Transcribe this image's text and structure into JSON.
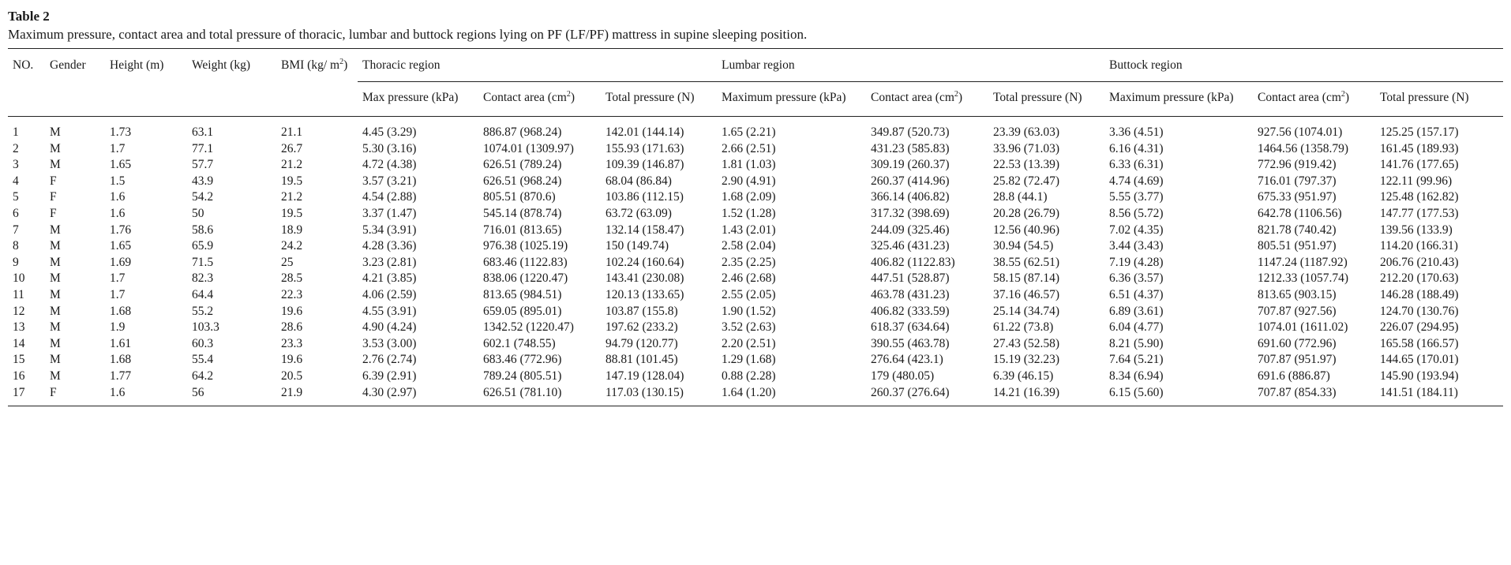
{
  "table": {
    "title": "Table 2",
    "caption": "Maximum pressure, contact area and total pressure of thoracic, lumbar and buttock regions lying on PF (LF/PF) mattress in supine sleeping position.",
    "header": {
      "no": "NO.",
      "gender": "Gender",
      "height": "Height (m)",
      "weight": "Weight (kg)",
      "bmi_prefix": "BMI (kg/ m",
      "bmi_sup": "2",
      "bmi_suffix": ")",
      "groups": {
        "thoracic": "Thoracic region",
        "lumbar": "Lumbar region",
        "buttock": "Buttock region"
      },
      "sub": {
        "thoracic_max": "Max pressure (kPa)",
        "thoracic_area_prefix": "Contact area (cm",
        "thoracic_total": "Total pressure (N)",
        "lumbar_max": "Maximum pressure (kPa)",
        "lumbar_area_prefix": "Contact area (cm",
        "lumbar_total": "Total pressure (N)",
        "buttock_max": "Maximum pressure (kPa)",
        "buttock_area_prefix": "Contact area (cm",
        "buttock_total": "Total pressure (N)",
        "area_sup": "2",
        "area_suffix": ")"
      }
    },
    "rows": [
      [
        "1",
        "M",
        "1.73",
        "63.1",
        "21.1",
        "4.45 (3.29)",
        "886.87 (968.24)",
        "142.01 (144.14)",
        "1.65 (2.21)",
        "349.87 (520.73)",
        "23.39 (63.03)",
        "3.36 (4.51)",
        "927.56 (1074.01)",
        "125.25 (157.17)"
      ],
      [
        "2",
        "M",
        "1.7",
        "77.1",
        "26.7",
        "5.30 (3.16)",
        "1074.01 (1309.97)",
        "155.93 (171.63)",
        "2.66 (2.51)",
        "431.23 (585.83)",
        "33.96 (71.03)",
        "6.16 (4.31)",
        "1464.56 (1358.79)",
        "161.45 (189.93)"
      ],
      [
        "3",
        "M",
        "1.65",
        "57.7",
        "21.2",
        "4.72 (4.38)",
        "626.51 (789.24)",
        "109.39 (146.87)",
        "1.81 (1.03)",
        "309.19 (260.37)",
        "22.53 (13.39)",
        "6.33 (6.31)",
        "772.96 (919.42)",
        "141.76 (177.65)"
      ],
      [
        "4",
        "F",
        "1.5",
        "43.9",
        "19.5",
        "3.57 (3.21)",
        "626.51 (968.24)",
        "68.04 (86.84)",
        "2.90 (4.91)",
        "260.37 (414.96)",
        "25.82 (72.47)",
        "4.74 (4.69)",
        "716.01 (797.37)",
        "122.11 (99.96)"
      ],
      [
        "5",
        "F",
        "1.6",
        "54.2",
        "21.2",
        "4.54 (2.88)",
        "805.51 (870.6)",
        "103.86 (112.15)",
        "1.68 (2.09)",
        "366.14 (406.82)",
        "28.8 (44.1)",
        "5.55 (3.77)",
        "675.33 (951.97)",
        "125.48 (162.82)"
      ],
      [
        "6",
        "F",
        "1.6",
        "50",
        "19.5",
        "3.37 (1.47)",
        "545.14 (878.74)",
        "63.72 (63.09)",
        "1.52 (1.28)",
        "317.32 (398.69)",
        "20.28 (26.79)",
        "8.56 (5.72)",
        "642.78 (1106.56)",
        "147.77 (177.53)"
      ],
      [
        "7",
        "M",
        "1.76",
        "58.6",
        "18.9",
        "5.34 (3.91)",
        "716.01 (813.65)",
        "132.14 (158.47)",
        "1.43 (2.01)",
        "244.09 (325.46)",
        "12.56 (40.96)",
        "7.02 (4.35)",
        "821.78 (740.42)",
        "139.56 (133.9)"
      ],
      [
        "8",
        "M",
        "1.65",
        "65.9",
        "24.2",
        "4.28 (3.36)",
        "976.38 (1025.19)",
        "150 (149.74)",
        "2.58 (2.04)",
        "325.46 (431.23)",
        "30.94 (54.5)",
        "3.44 (3.43)",
        "805.51 (951.97)",
        "114.20 (166.31)"
      ],
      [
        "9",
        "M",
        "1.69",
        "71.5",
        "25",
        "3.23 (2.81)",
        "683.46 (1122.83)",
        "102.24 (160.64)",
        "2.35 (2.25)",
        "406.82 (1122.83)",
        "38.55 (62.51)",
        "7.19 (4.28)",
        "1147.24 (1187.92)",
        "206.76 (210.43)"
      ],
      [
        "10",
        "M",
        "1.7",
        "82.3",
        "28.5",
        "4.21 (3.85)",
        "838.06 (1220.47)",
        "143.41 (230.08)",
        "2.46 (2.68)",
        "447.51 (528.87)",
        "58.15 (87.14)",
        "6.36 (3.57)",
        "1212.33 (1057.74)",
        "212.20 (170.63)"
      ],
      [
        "11",
        "M",
        "1.7",
        "64.4",
        "22.3",
        "4.06 (2.59)",
        "813.65 (984.51)",
        "120.13 (133.65)",
        "2.55 (2.05)",
        "463.78 (431.23)",
        "37.16 (46.57)",
        "6.51 (4.37)",
        "813.65 (903.15)",
        "146.28 (188.49)"
      ],
      [
        "12",
        "M",
        "1.68",
        "55.2",
        "19.6",
        "4.55 (3.91)",
        "659.05 (895.01)",
        "103.87 (155.8)",
        "1.90 (1.52)",
        "406.82 (333.59)",
        "25.14 (34.74)",
        "6.89 (3.61)",
        "707.87 (927.56)",
        "124.70 (130.76)"
      ],
      [
        "13",
        "M",
        "1.9",
        "103.3",
        "28.6",
        "4.90 (4.24)",
        "1342.52 (1220.47)",
        "197.62 (233.2)",
        "3.52 (2.63)",
        "618.37 (634.64)",
        "61.22 (73.8)",
        "6.04 (4.77)",
        "1074.01 (1611.02)",
        "226.07 (294.95)"
      ],
      [
        "14",
        "M",
        "1.61",
        "60.3",
        "23.3",
        "3.53 (3.00)",
        "602.1 (748.55)",
        "94.79 (120.77)",
        "2.20 (2.51)",
        "390.55 (463.78)",
        "27.43 (52.58)",
        "8.21 (5.90)",
        "691.60 (772.96)",
        "165.58 (166.57)"
      ],
      [
        "15",
        "M",
        "1.68",
        "55.4",
        "19.6",
        "2.76 (2.74)",
        "683.46 (772.96)",
        "88.81 (101.45)",
        "1.29 (1.68)",
        "276.64 (423.1)",
        "15.19 (32.23)",
        "7.64 (5.21)",
        "707.87 (951.97)",
        "144.65 (170.01)"
      ],
      [
        "16",
        "M",
        "1.77",
        "64.2",
        "20.5",
        "6.39 (2.91)",
        "789.24 (805.51)",
        "147.19 (128.04)",
        "0.88 (2.28)",
        "179 (480.05)",
        "6.39 (46.15)",
        "8.34 (6.94)",
        "691.6 (886.87)",
        "145.90 (193.94)"
      ],
      [
        "17",
        "F",
        "1.6",
        "56",
        "21.9",
        "4.30 (2.97)",
        "626.51 (781.10)",
        "117.03 (130.15)",
        "1.64 (1.20)",
        "260.37 (276.64)",
        "14.21 (16.39)",
        "6.15 (5.60)",
        "707.87 (854.33)",
        "141.51 (184.11)"
      ]
    ]
  }
}
